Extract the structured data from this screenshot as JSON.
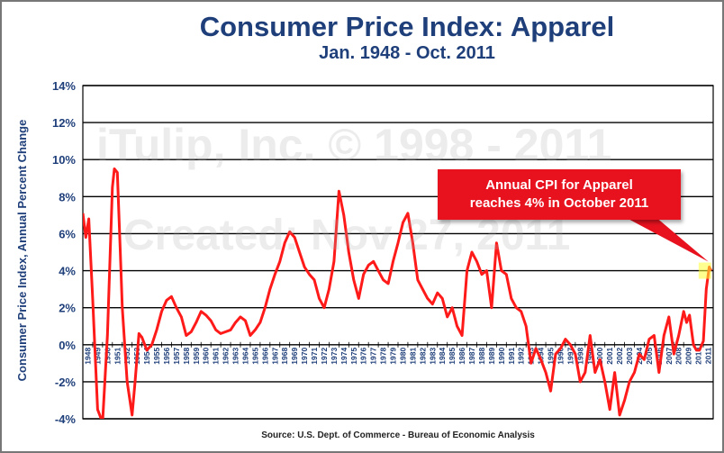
{
  "chart_data": {
    "type": "line",
    "title": "Consumer Price Index: Apparel",
    "subtitle": "Jan. 1948 - Oct. 2011",
    "ylabel": "Consumer Price Index, Annual Percent Change",
    "xlabel": "",
    "ylim": [
      -4,
      14
    ],
    "yticks": [
      "-4%",
      "-2%",
      "0%",
      "2%",
      "4%",
      "6%",
      "8%",
      "10%",
      "12%",
      "14%"
    ],
    "xlim": [
      1948,
      2012
    ],
    "grid": true,
    "categories": [
      "1948",
      "1949",
      "1950",
      "1951",
      "1952",
      "1953",
      "1954",
      "1955",
      "1956",
      "1957",
      "1958",
      "1959",
      "1960",
      "1961",
      "1962",
      "1963",
      "1964",
      "1965",
      "1966",
      "1967",
      "1968",
      "1969",
      "1970",
      "1971",
      "1972",
      "1973",
      "1974",
      "1975",
      "1976",
      "1977",
      "1978",
      "1979",
      "1980",
      "1981",
      "1982",
      "1983",
      "1984",
      "1985",
      "1986",
      "1987",
      "1988",
      "1989",
      "1990",
      "1991",
      "1992",
      "1993",
      "1994",
      "1995",
      "1996",
      "1997",
      "1998",
      "1999",
      "2000",
      "2001",
      "2002",
      "2003",
      "2004",
      "2005",
      "2006",
      "2007",
      "2008",
      "2009",
      "2010",
      "2011"
    ],
    "series": [
      {
        "color": "#ff1a1a",
        "x": [
          1948.0,
          1948.3,
          1948.6,
          1949.0,
          1949.5,
          1950.0,
          1950.5,
          1951.0,
          1951.2,
          1951.5,
          1951.8,
          1952.0,
          1952.5,
          1953.0,
          1953.3,
          1953.7,
          1954.0,
          1954.5,
          1955.0,
          1955.5,
          1956.0,
          1956.5,
          1957.0,
          1957.5,
          1958.0,
          1958.5,
          1959.0,
          1959.5,
          1960.0,
          1960.5,
          1961.0,
          1961.5,
          1962.0,
          1962.5,
          1963.0,
          1963.5,
          1964.0,
          1964.5,
          1965.0,
          1965.5,
          1966.0,
          1966.5,
          1967.0,
          1967.5,
          1968.0,
          1968.5,
          1969.0,
          1969.5,
          1970.0,
          1970.5,
          1971.0,
          1971.5,
          1972.0,
          1972.5,
          1973.0,
          1973.5,
          1974.0,
          1974.5,
          1975.0,
          1975.5,
          1976.0,
          1976.5,
          1977.0,
          1977.5,
          1978.0,
          1978.5,
          1979.0,
          1979.5,
          1980.0,
          1980.5,
          1981.0,
          1981.5,
          1982.0,
          1982.5,
          1983.0,
          1983.5,
          1984.0,
          1984.5,
          1985.0,
          1985.5,
          1986.0,
          1986.5,
          1987.0,
          1987.5,
          1988.0,
          1988.5,
          1989.0,
          1989.5,
          1990.0,
          1990.5,
          1991.0,
          1991.5,
          1992.0,
          1992.5,
          1993.0,
          1993.5,
          1994.0,
          1994.5,
          1995.0,
          1995.5,
          1996.0,
          1996.5,
          1997.0,
          1997.5,
          1998.0,
          1998.5,
          1999.0,
          1999.5,
          2000.0,
          2000.5,
          2001.0,
          2001.5,
          2002.0,
          2002.5,
          2003.0,
          2003.5,
          2004.0,
          2004.5,
          2005.0,
          2005.5,
          2006.0,
          2006.5,
          2007.0,
          2007.5,
          2008.0,
          2008.5,
          2009.0,
          2009.3,
          2009.6,
          2010.0,
          2010.3,
          2010.6,
          2011.0,
          2011.3,
          2011.6,
          2011.8
        ],
        "values": [
          7.1,
          5.8,
          6.8,
          2.5,
          -3.5,
          -4.2,
          0.5,
          8.5,
          9.5,
          9.3,
          5.0,
          2.0,
          -2.0,
          -3.8,
          -2.0,
          0.6,
          0.4,
          -0.3,
          0.0,
          0.8,
          1.8,
          2.4,
          2.6,
          2.0,
          1.5,
          0.5,
          0.7,
          1.2,
          1.8,
          1.6,
          1.3,
          0.8,
          0.6,
          0.7,
          0.8,
          1.2,
          1.5,
          1.3,
          0.5,
          0.8,
          1.2,
          2.0,
          3.0,
          3.8,
          4.5,
          5.5,
          6.1,
          5.8,
          5.0,
          4.2,
          3.8,
          3.5,
          2.5,
          2.0,
          3.0,
          4.5,
          8.3,
          7.0,
          5.0,
          3.5,
          2.5,
          3.8,
          4.3,
          4.5,
          4.0,
          3.5,
          3.3,
          4.5,
          5.5,
          6.6,
          7.1,
          5.5,
          3.5,
          3.0,
          2.5,
          2.2,
          2.8,
          2.5,
          1.5,
          2.0,
          1.0,
          0.5,
          4.0,
          5.0,
          4.5,
          3.8,
          4.0,
          2.0,
          5.5,
          4.0,
          3.8,
          2.5,
          2.0,
          1.8,
          1.0,
          -1.0,
          -0.2,
          -0.8,
          -1.5,
          -2.5,
          -0.5,
          -0.2,
          0.3,
          0.0,
          -0.5,
          -2.0,
          -1.5,
          0.5,
          -1.5,
          -0.8,
          -2.0,
          -3.5,
          -1.5,
          -3.8,
          -3.0,
          -2.0,
          -1.5,
          -0.5,
          -0.8,
          0.3,
          0.5,
          -1.5,
          0.5,
          1.5,
          -0.5,
          0.5,
          1.8,
          1.2,
          1.6,
          0.0,
          -0.3,
          -0.3,
          0.2,
          3.0,
          4.2,
          4.0
        ]
      }
    ],
    "annotations": [
      {
        "text_line1": "Annual CPI for Apparel",
        "text_line2": "reaches 4% in October 2011",
        "x": 2011.8,
        "y": 4.0
      }
    ],
    "watermarks": [
      "iTulip, Inc. © 1998 - 2011",
      "Created: Nov 27, 2011"
    ],
    "source": "Source: U.S. Dept. of Commerce - Bureau of Economic Analysis"
  }
}
